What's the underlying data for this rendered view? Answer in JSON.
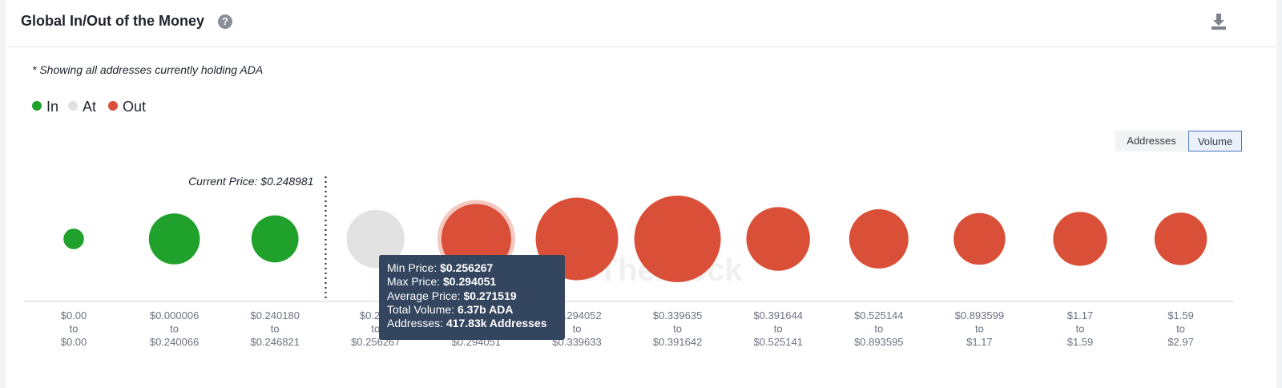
{
  "header": {
    "title": "Global In/Out of the Money",
    "help_icon": "question-circle-icon",
    "download_icon": "download-icon"
  },
  "note": "* Showing all addresses currently holding ADA",
  "legend": [
    {
      "label": "In",
      "color": "#1fa12b"
    },
    {
      "label": "At",
      "color": "#e2e2e2"
    },
    {
      "label": "Out",
      "color": "#d94f37"
    }
  ],
  "toggles": {
    "addresses": "Addresses",
    "volume": "Volume",
    "active": "volume"
  },
  "current_price_label": "Current Price: $0.248981",
  "watermark": "IntoTheBlock",
  "tooltip": {
    "min_price_label": "Min Price: ",
    "min_price": "$0.256267",
    "max_price_label": "Max Price: ",
    "max_price": "$0.294051",
    "avg_price_label": "Average Price: ",
    "avg_price": "$0.271519",
    "total_volume_label": "Total Volume: ",
    "total_volume": "6.37b ADA",
    "addresses_label": "Addresses: ",
    "addresses": "417.83k Addresses"
  },
  "chart_data": {
    "type": "bubble",
    "title": "Global In/Out of the Money",
    "size_metric": "Volume",
    "current_price_between_bins": [
      2,
      3
    ],
    "highlighted_bin": 4,
    "bins": [
      {
        "from": "$0.00",
        "to": "$0.00",
        "status": "In",
        "volume_b": 0.55
      },
      {
        "from": "$0.000006",
        "to": "$0.240066",
        "status": "In",
        "volume_b": 3.4
      },
      {
        "from": "$0.240180",
        "to": "$0.246821",
        "status": "In",
        "volume_b": 2.9
      },
      {
        "from": "$0.246",
        "to": "$0.256267",
        "status": "At",
        "volume_b": 4.4
      },
      {
        "from": "$0.256267",
        "to": "$0.294051",
        "status": "Out",
        "volume_b": 6.37
      },
      {
        "from": "$0.294052",
        "to": "$0.339633",
        "status": "Out",
        "volume_b": 8.9
      },
      {
        "from": "$0.339635",
        "to": "$0.391642",
        "status": "Out",
        "volume_b": 9.8
      },
      {
        "from": "$0.391644",
        "to": "$0.525141",
        "status": "Out",
        "volume_b": 5.3
      },
      {
        "from": "$0.525144",
        "to": "$0.893595",
        "status": "Out",
        "volume_b": 4.6
      },
      {
        "from": "$0.893599",
        "to": "$1.17",
        "status": "Out",
        "volume_b": 3.5
      },
      {
        "from": "$1.17",
        "to": "$1.59",
        "status": "Out",
        "volume_b": 3.8
      },
      {
        "from": "$1.59",
        "to": "$2.97",
        "status": "Out",
        "volume_b": 3.6
      }
    ],
    "to_word": "to"
  }
}
